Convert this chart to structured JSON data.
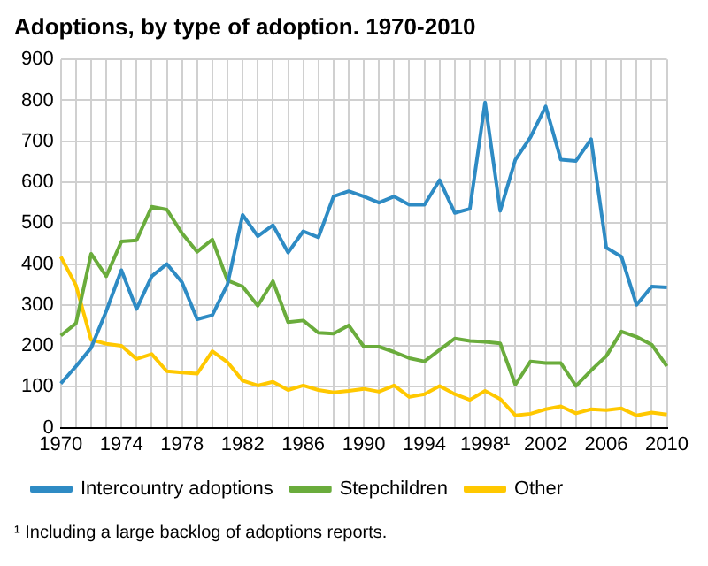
{
  "chart_data": {
    "type": "line",
    "title": "Adoptions, by type of adoption. 1970-2010",
    "categories": [
      "1970",
      null,
      null,
      null,
      "1974",
      null,
      null,
      null,
      "1978",
      null,
      null,
      null,
      "1982",
      null,
      null,
      null,
      "1986",
      null,
      null,
      null,
      "1990",
      null,
      null,
      null,
      "1994",
      null,
      null,
      null,
      "1998¹",
      null,
      null,
      null,
      "2002",
      null,
      null,
      null,
      "2006",
      null,
      null,
      null,
      "2010"
    ],
    "series": [
      {
        "name": "Intercountry adoptions",
        "color": "#2e8bc4",
        "values": [
          108,
          150,
          195,
          285,
          385,
          290,
          370,
          400,
          355,
          265,
          275,
          350,
          520,
          468,
          495,
          428,
          480,
          465,
          565,
          578,
          565,
          550,
          565,
          545,
          545,
          605,
          525,
          535,
          795,
          530,
          655,
          710,
          785,
          655,
          652,
          705,
          440,
          418,
          300,
          345,
          343
        ]
      },
      {
        "name": "Stepchildren",
        "color": "#6aac3c",
        "values": [
          225,
          255,
          425,
          370,
          455,
          458,
          540,
          533,
          475,
          430,
          460,
          360,
          345,
          298,
          358,
          258,
          262,
          232,
          230,
          250,
          198,
          198,
          185,
          170,
          162,
          190,
          218,
          212,
          210,
          206,
          105,
          162,
          158,
          158,
          102,
          140,
          175,
          235,
          222,
          203,
          150
        ]
      },
      {
        "name": "Other",
        "color": "#ffc800",
        "values": [
          418,
          348,
          215,
          205,
          200,
          168,
          180,
          138,
          135,
          132,
          187,
          160,
          115,
          103,
          112,
          92,
          103,
          92,
          86,
          90,
          95,
          88,
          103,
          75,
          82,
          102,
          82,
          68,
          90,
          70,
          30,
          34,
          45,
          52,
          35,
          45,
          43,
          47,
          30,
          37,
          32
        ]
      }
    ],
    "ylim": [
      0,
      900
    ],
    "yticks": [
      0,
      100,
      200,
      300,
      400,
      500,
      600,
      700,
      800,
      900
    ],
    "grid": true,
    "legend": "bottom",
    "marker": "none",
    "line_style": "solid",
    "annotations": [
      "¹ Including a large backlog of adoptions reports."
    ]
  }
}
